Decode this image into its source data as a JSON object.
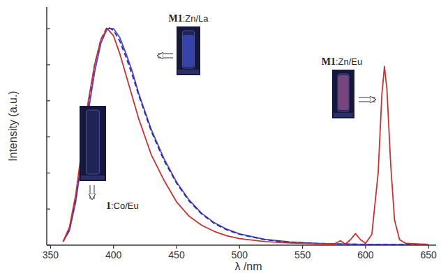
{
  "chart_data": {
    "type": "line",
    "x_label": "λ /nm",
    "y_label": "Intensity (a.u.)",
    "xlim": [
      347,
      656
    ],
    "xticks": [
      350,
      400,
      450,
      500,
      550,
      600,
      650
    ],
    "ylim": [
      0,
      6.6
    ],
    "yticks": [
      0,
      1,
      2,
      3,
      4,
      5,
      6
    ],
    "tick_labels": "x",
    "grid": false,
    "series": [
      {
        "color": "#4a4ad0",
        "line_style": "solid",
        "x": [
          360,
          365,
          370,
          375,
          380,
          385,
          390,
          395,
          400,
          405,
          410,
          415,
          420,
          425,
          430,
          440,
          450,
          460,
          470,
          480,
          490,
          500,
          520,
          540,
          560,
          580,
          600,
          620,
          650
        ],
        "values": [
          0.1,
          0.4,
          1.2,
          2.4,
          3.7,
          4.8,
          5.6,
          6.0,
          6.0,
          5.75,
          5.3,
          4.8,
          4.2,
          3.7,
          3.2,
          2.4,
          1.75,
          1.25,
          0.88,
          0.62,
          0.44,
          0.31,
          0.16,
          0.09,
          0.05,
          0.03,
          0.02,
          0.02,
          0.01
        ]
      },
      {
        "color": "#2e2e8c",
        "line_style": "dashed",
        "x": [
          360,
          365,
          370,
          375,
          380,
          385,
          390,
          395,
          400,
          405,
          410,
          415,
          420,
          425,
          430,
          440,
          450,
          460,
          470,
          480,
          490,
          500,
          520,
          540,
          560,
          580,
          600,
          620,
          650
        ],
        "values": [
          0.1,
          0.45,
          1.3,
          2.6,
          3.9,
          5.0,
          5.7,
          6.05,
          5.95,
          5.65,
          5.2,
          4.7,
          4.15,
          3.65,
          3.15,
          2.35,
          1.72,
          1.22,
          0.86,
          0.6,
          0.42,
          0.3,
          0.15,
          0.08,
          0.05,
          0.03,
          0.02,
          0.02,
          0.01
        ]
      },
      {
        "color": "#c83232",
        "line_style": "solid",
        "x": [
          360,
          365,
          370,
          375,
          380,
          385,
          390,
          395,
          400,
          405,
          410,
          415,
          420,
          425,
          430,
          440,
          450,
          460,
          470,
          480,
          490,
          500,
          520,
          540,
          560,
          575,
          580,
          584,
          588,
          592,
          596,
          600,
          605,
          610,
          613,
          615,
          617,
          620,
          623,
          627,
          632,
          650
        ],
        "values": [
          0.1,
          0.5,
          1.4,
          2.7,
          4.0,
          5.0,
          5.7,
          6.0,
          5.8,
          5.3,
          4.7,
          4.1,
          3.5,
          3.0,
          2.5,
          1.8,
          1.2,
          0.8,
          0.55,
          0.38,
          0.26,
          0.18,
          0.1,
          0.06,
          0.04,
          0.03,
          0.12,
          0.03,
          0.15,
          0.32,
          0.15,
          0.05,
          0.3,
          2.0,
          4.2,
          4.95,
          4.3,
          2.2,
          0.7,
          0.15,
          0.05,
          0.02
        ]
      }
    ],
    "annotations": [
      "M1:Zn/La",
      "1:Co/Eu",
      "M1:Zn/Eu"
    ]
  }
}
